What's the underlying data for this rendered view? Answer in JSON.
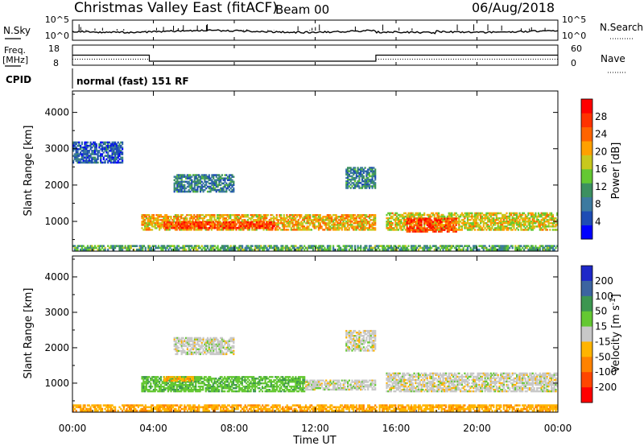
{
  "header": {
    "title": "Christmas Valley East (fitACF)",
    "beam": "Beam 00",
    "date": "06/Aug/2018"
  },
  "noise_panel": {
    "left_label": "N.Sky",
    "right_label": "N.Search",
    "left_ticks": [
      "10^5",
      "10^0"
    ],
    "right_ticks": [
      "10^5",
      "10^0"
    ]
  },
  "freq_panel": {
    "left_label": "Freq.",
    "left_unit": "[MHz]",
    "right_label": "Nave",
    "left_ticks": [
      "18",
      "8"
    ],
    "right_ticks": [
      "60",
      "0"
    ],
    "freq_steps": [
      {
        "start_hour": 0,
        "end_hour": 3.8,
        "mhz": 13
      },
      {
        "start_hour": 3.8,
        "end_hour": 15.0,
        "mhz": 10
      },
      {
        "start_hour": 15.0,
        "end_hour": 24,
        "mhz": 13
      }
    ]
  },
  "cpid": {
    "label": "CPID",
    "mode": "normal (fast) 151 RF"
  },
  "chart_data": [
    {
      "type": "heatmap",
      "name": "power",
      "ylabel": "Slant Range [km]",
      "xlabel": "Time UT",
      "x_ticks": [
        "00:00",
        "04:00",
        "08:00",
        "12:00",
        "16:00",
        "20:00",
        "00:00"
      ],
      "x_hours": [
        0,
        4,
        8,
        12,
        16,
        20,
        24
      ],
      "y_ticks": [
        1000,
        2000,
        3000,
        4000
      ],
      "ylim": [
        180,
        4590
      ],
      "xlim_hours": [
        0,
        24
      ],
      "colorbar": {
        "label": "Power [dB]",
        "ticks": [
          "4",
          "8",
          "12",
          "16",
          "20",
          "24",
          "28"
        ],
        "range": [
          0,
          32
        ],
        "colors": [
          "#0000ff",
          "#1e4cb4",
          "#3c7aa0",
          "#3c9060",
          "#64c832",
          "#c8c81e",
          "#ffa000",
          "#ff6400",
          "#ff3200",
          "#ff0000"
        ]
      },
      "echo_regions": [
        {
          "t0": 3.4,
          "t1": 15.0,
          "r0": 750,
          "r1": 1200,
          "power_db": 20
        },
        {
          "t0": 4.5,
          "t1": 10.0,
          "r0": 800,
          "r1": 1000,
          "power_db": 27
        },
        {
          "t0": 15.5,
          "t1": 24.0,
          "r0": 750,
          "r1": 1250,
          "power_db": 18
        },
        {
          "t0": 16.5,
          "t1": 19.0,
          "r0": 700,
          "r1": 1100,
          "power_db": 26
        },
        {
          "t0": 5.0,
          "t1": 8.0,
          "r0": 1800,
          "r1": 2300,
          "power_db": 9
        },
        {
          "t0": 13.5,
          "t1": 15.0,
          "r0": 1900,
          "r1": 2500,
          "power_db": 9
        },
        {
          "t0": 0.0,
          "t1": 2.5,
          "r0": 2600,
          "r1": 3200,
          "power_db": 6
        },
        {
          "t0": 0.0,
          "t1": 24.0,
          "r0": 200,
          "r1": 350,
          "power_db": 12
        }
      ]
    },
    {
      "type": "heatmap",
      "name": "velocity",
      "ylabel": "Slant Range [km]",
      "xlabel": "Time UT",
      "x_ticks": [
        "00:00",
        "04:00",
        "08:00",
        "12:00",
        "16:00",
        "20:00",
        "00:00"
      ],
      "x_hours": [
        0,
        4,
        8,
        12,
        16,
        20,
        24
      ],
      "y_ticks": [
        1000,
        2000,
        3000,
        4000
      ],
      "ylim": [
        180,
        4590
      ],
      "xlim_hours": [
        0,
        24
      ],
      "colorbar": {
        "label": "Velocity [m s^-1]",
        "ticks": [
          "200",
          "100",
          "50",
          "15",
          "-15",
          "-50",
          "-100",
          "-200"
        ],
        "colors": [
          "#1e28c8",
          "#3c64a0",
          "#3c9650",
          "#64c832",
          "#c8c8c8",
          "#ffb400",
          "#ff8200",
          "#ff4600",
          "#ff0000"
        ]
      },
      "echo_regions": [
        {
          "t0": 3.4,
          "t1": 11.5,
          "r0": 750,
          "r1": 1200,
          "velocity": 40
        },
        {
          "t0": 4.5,
          "t1": 6.0,
          "r0": 1050,
          "r1": 1200,
          "velocity": -40
        },
        {
          "t0": 11.5,
          "t1": 15.0,
          "r0": 800,
          "r1": 1100,
          "velocity": 0
        },
        {
          "t0": 15.5,
          "t1": 24.0,
          "r0": 750,
          "r1": 1300,
          "velocity": 0
        },
        {
          "t0": 5.0,
          "t1": 8.0,
          "r0": 1800,
          "r1": 2300,
          "velocity": 0
        },
        {
          "t0": 13.5,
          "t1": 15.0,
          "r0": 1900,
          "r1": 2500,
          "velocity": 0
        },
        {
          "t0": 0.0,
          "t1": 24.0,
          "r0": 200,
          "r1": 400,
          "velocity": -40
        }
      ]
    }
  ]
}
